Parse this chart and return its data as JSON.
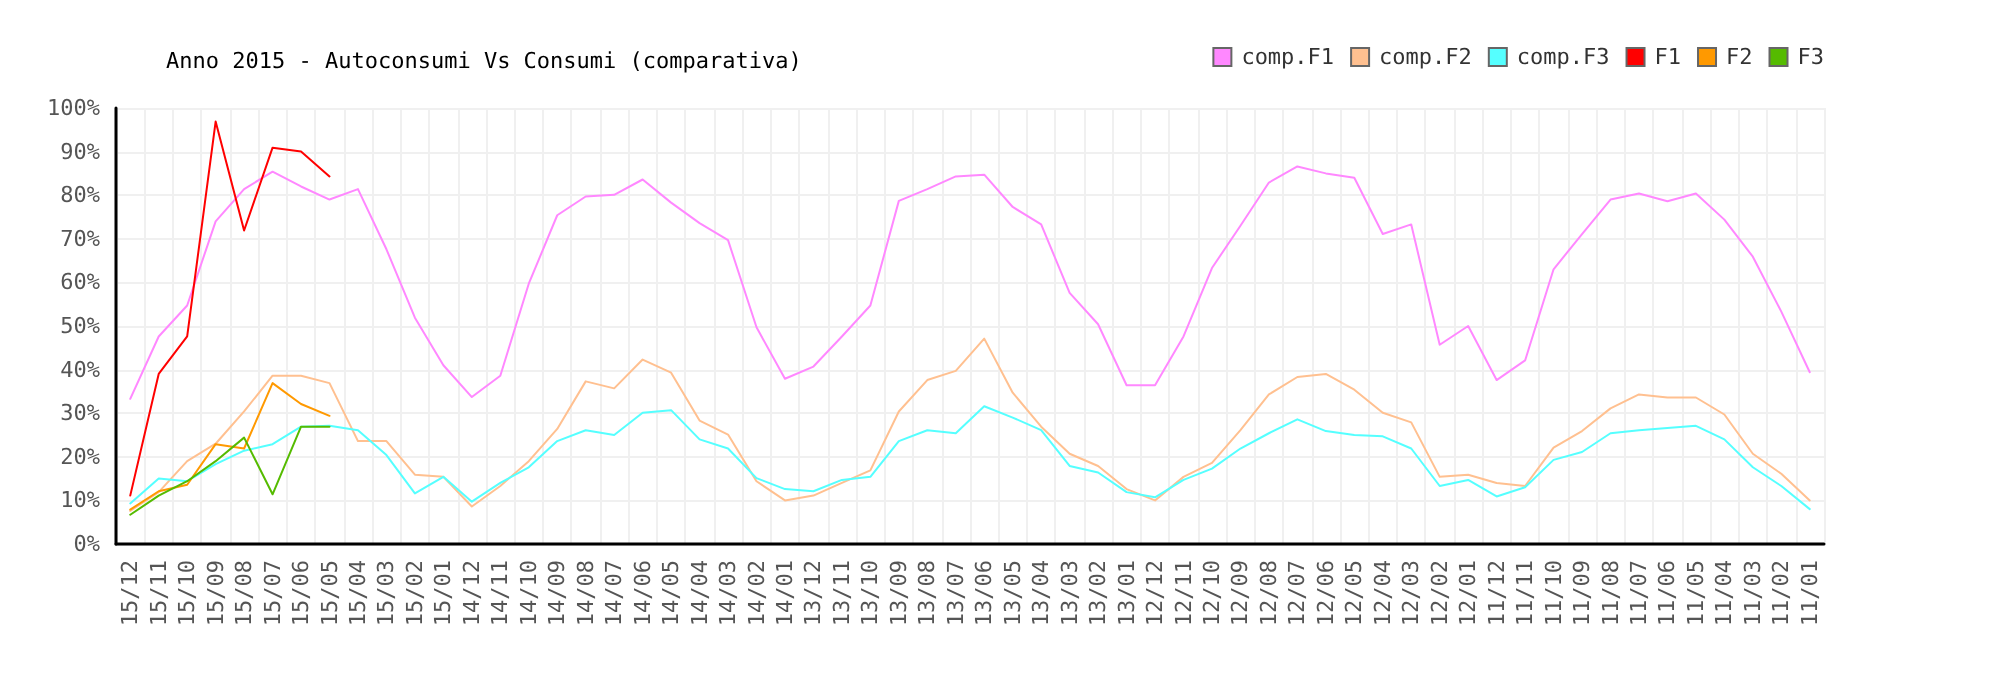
{
  "chart_data": {
    "type": "line",
    "title": "Anno 2015 - Autoconsumi Vs Consumi (comparativa)",
    "categories": [
      "15/12",
      "15/11",
      "15/10",
      "15/09",
      "15/08",
      "15/07",
      "15/06",
      "15/05",
      "15/04",
      "15/03",
      "15/02",
      "15/01",
      "14/12",
      "14/11",
      "14/10",
      "14/09",
      "14/08",
      "14/07",
      "14/06",
      "14/05",
      "14/04",
      "14/03",
      "14/02",
      "14/01",
      "13/12",
      "13/11",
      "13/10",
      "13/09",
      "13/08",
      "13/07",
      "13/06",
      "13/05",
      "13/04",
      "13/03",
      "13/02",
      "13/01",
      "12/12",
      "12/11",
      "12/10",
      "12/09",
      "12/08",
      "12/07",
      "12/06",
      "12/05",
      "12/04",
      "12/03",
      "12/02",
      "12/01",
      "11/12",
      "11/11",
      "11/10",
      "11/09",
      "11/08",
      "11/07",
      "11/06",
      "11/05",
      "11/04",
      "11/03",
      "11/02",
      "11/01"
    ],
    "series": [
      {
        "name": "comp.F1",
        "color": "#ff88ff",
        "values": [
          33.3,
          47.6,
          54.7,
          74,
          81.4,
          85.4,
          82,
          79,
          81.4,
          67.6,
          51.9,
          41,
          33.7,
          38.6,
          59.7,
          75.4,
          79.7,
          80.1,
          83.6,
          78.3,
          73.6,
          69.7,
          49.7,
          37.9,
          40.7,
          47.6,
          54.7,
          78.7,
          81.4,
          84.3,
          84.7,
          77.3,
          73.3,
          57.6,
          50.4,
          36.4,
          36.4,
          47.6,
          63.3,
          73,
          82.9,
          86.6,
          85,
          84,
          71.1,
          73.3,
          45.7,
          50,
          37.6,
          42.1,
          63,
          71.1,
          79,
          80.4,
          78.6,
          80.4,
          74.4,
          65.9,
          53.3,
          39.4
        ]
      },
      {
        "name": "comp.F2",
        "color": "#ffc090",
        "values": [
          7.6,
          11.9,
          19,
          23,
          30.4,
          38.6,
          38.6,
          36.9,
          23.6,
          23.6,
          15.9,
          15.4,
          8.6,
          13.3,
          19,
          26.4,
          37.3,
          35.7,
          42.3,
          39.3,
          28.3,
          25.1,
          14.4,
          10,
          11.1,
          14,
          16.9,
          30.4,
          37.6,
          39.7,
          47.1,
          34.7,
          26.9,
          20.7,
          17.9,
          12.6,
          10,
          15.4,
          18.6,
          26.1,
          34.3,
          38.3,
          39,
          35.4,
          30.1,
          27.9,
          15.4,
          15.9,
          14,
          13.3,
          22.1,
          25.9,
          31.1,
          34.3,
          33.6,
          33.6,
          29.7,
          20.7,
          16.1,
          10
        ]
      },
      {
        "name": "comp.F3",
        "color": "#55ffff",
        "values": [
          9.3,
          15,
          14.4,
          18.3,
          21.4,
          22.9,
          26.9,
          27.1,
          26.1,
          20.4,
          11.6,
          15.4,
          9.7,
          14,
          17.6,
          23.6,
          26.1,
          25,
          30.1,
          30.7,
          24,
          21.9,
          15.1,
          12.6,
          12.1,
          14.7,
          15.4,
          23.6,
          26.1,
          25.4,
          31.6,
          29,
          26.1,
          17.9,
          16.4,
          11.9,
          10.7,
          14.7,
          17.3,
          21.9,
          25.4,
          28.6,
          25.9,
          25,
          24.7,
          21.9,
          13.3,
          14.7,
          10.9,
          13,
          19.3,
          21.1,
          25.4,
          26.1,
          26.6,
          27.1,
          24,
          17.6,
          13.3,
          8
        ]
      },
      {
        "name": "F1",
        "color": "#ff0000",
        "values": [
          11.1,
          39,
          47.6,
          96.9,
          71.9,
          90.9,
          90,
          84.3,
          null,
          null,
          null,
          null,
          null,
          null,
          null,
          null,
          null,
          null,
          null,
          null,
          null,
          null,
          null,
          null,
          null,
          null,
          null,
          null,
          null,
          null,
          null,
          null,
          null,
          null,
          null,
          null,
          null,
          null,
          null,
          null,
          null,
          null,
          null,
          null,
          null,
          null,
          null,
          null,
          null,
          null,
          null,
          null,
          null,
          null,
          null,
          null,
          null,
          null,
          null,
          null
        ]
      },
      {
        "name": "F2",
        "color": "#ff9900",
        "values": [
          7.9,
          12.1,
          13.6,
          22.9,
          21.9,
          36.9,
          32.1,
          29.4,
          null,
          null,
          null,
          null,
          null,
          null,
          null,
          null,
          null,
          null,
          null,
          null,
          null,
          null,
          null,
          null,
          null,
          null,
          null,
          null,
          null,
          null,
          null,
          null,
          null,
          null,
          null,
          null,
          null,
          null,
          null,
          null,
          null,
          null,
          null,
          null,
          null,
          null,
          null,
          null,
          null,
          null,
          null,
          null,
          null,
          null,
          null,
          null,
          null,
          null,
          null,
          null
        ]
      },
      {
        "name": "F3",
        "color": "#55bb00",
        "values": [
          6.7,
          11.1,
          14.4,
          19,
          24.4,
          11.4,
          26.9,
          26.9,
          null,
          null,
          null,
          null,
          null,
          null,
          null,
          null,
          null,
          null,
          null,
          null,
          null,
          null,
          null,
          null,
          null,
          null,
          null,
          null,
          null,
          null,
          null,
          null,
          null,
          null,
          null,
          null,
          null,
          null,
          null,
          null,
          null,
          null,
          null,
          null,
          null,
          null,
          null,
          null,
          null,
          null,
          null,
          null,
          null,
          null,
          null,
          null,
          null,
          null,
          null,
          null
        ]
      }
    ],
    "ylim": [
      0,
      100
    ],
    "yticks": [
      {
        "value": 0,
        "label": "0%"
      },
      {
        "value": 10,
        "label": "10%"
      },
      {
        "value": 20,
        "label": "20%"
      },
      {
        "value": 30,
        "label": "30%"
      },
      {
        "value": 40,
        "label": "40%"
      },
      {
        "value": 50,
        "label": "50%"
      },
      {
        "value": 60,
        "label": "60%"
      },
      {
        "value": 70,
        "label": "70%"
      },
      {
        "value": 80,
        "label": "80%"
      },
      {
        "value": 90,
        "label": "90%"
      },
      {
        "value": 100,
        "label": "100%"
      }
    ],
    "grid": true,
    "legend": "top right",
    "marker": "none",
    "line_style": "solid"
  }
}
